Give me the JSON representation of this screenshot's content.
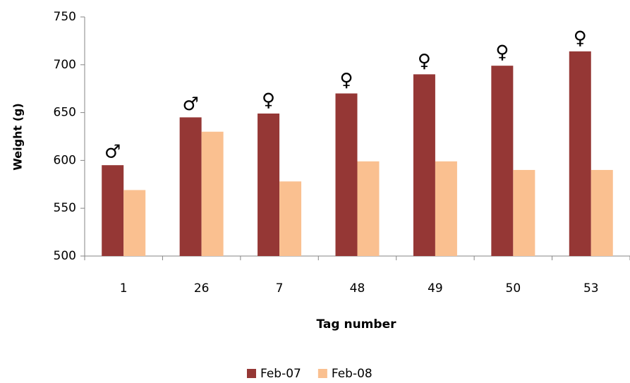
{
  "chart_data": {
    "type": "bar",
    "categories": [
      "1",
      "26",
      "7",
      "48",
      "49",
      "50",
      "53"
    ],
    "series": [
      {
        "name": "Feb-07",
        "color": "#953735",
        "values": [
          595,
          645,
          649,
          670,
          690,
          699,
          714
        ]
      },
      {
        "name": "Feb-08",
        "color": "#fac090",
        "values": [
          569,
          630,
          578,
          599,
          599,
          590,
          590
        ]
      }
    ],
    "annotations": [
      "♂",
      "♂",
      "♀",
      "♀",
      "♀",
      "♀",
      "♀"
    ],
    "xlabel": "Tag number",
    "ylabel": "Weight (g)",
    "ylim": [
      500,
      750
    ],
    "yticks": [
      500,
      550,
      600,
      650,
      700,
      750
    ],
    "grid": false,
    "legend": "bottom"
  }
}
